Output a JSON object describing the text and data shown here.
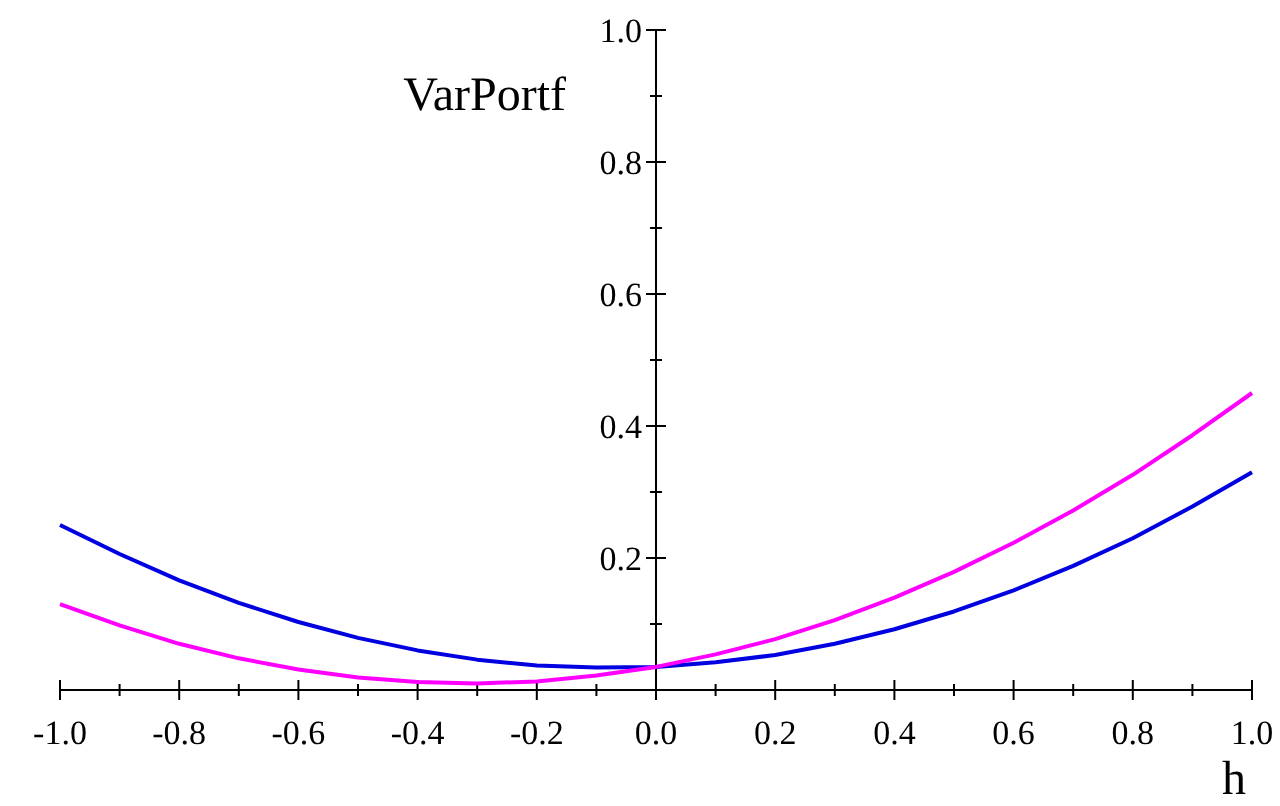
{
  "chart_data": {
    "type": "line",
    "xlabel": "h",
    "ylabel": "VarPortf",
    "xlim": [
      -1,
      1
    ],
    "ylim": [
      0,
      1
    ],
    "xticks": [
      {
        "value": -1,
        "label": "-1.0"
      },
      {
        "value": -0.9,
        "label": null
      },
      -0.8,
      {
        "value": -0.7,
        "label": null
      },
      -0.6,
      {
        "value": -0.5,
        "label": null
      },
      -0.4,
      {
        "value": -0.3,
        "label": null
      },
      -0.2,
      {
        "value": -0.1,
        "label": null
      },
      {
        "value": 0,
        "label": "0.0"
      },
      {
        "value": 0.1,
        "label": null
      },
      0.2,
      {
        "value": 0.3,
        "label": null
      },
      0.4,
      {
        "value": 0.5,
        "label": null
      },
      0.6,
      {
        "value": 0.7,
        "label": null
      },
      0.8,
      {
        "value": 0.9,
        "label": null
      },
      {
        "value": 1,
        "label": "1.0"
      }
    ],
    "yticks": [
      {
        "value": 0.1,
        "label": null
      },
      0.2,
      {
        "value": 0.3,
        "label": null
      },
      0.4,
      {
        "value": 0.5,
        "label": null
      },
      0.6,
      {
        "value": 0.7,
        "label": null
      },
      0.8,
      {
        "value": 0.9,
        "label": null
      },
      {
        "value": 1,
        "label": "1.0"
      }
    ],
    "x": [
      -1,
      -0.9,
      -0.8,
      -0.7,
      -0.6,
      -0.5,
      -0.4,
      -0.3,
      -0.2,
      -0.1,
      0,
      0.1,
      0.2,
      0.3,
      0.4,
      0.5,
      0.6,
      0.7,
      0.8,
      0.9,
      1
    ],
    "grid": false,
    "marker": "none",
    "line_style": "solid",
    "series": [
      {
        "color": "#0000e0",
        "values": [
          0.25,
          0.206,
          0.166,
          0.132,
          0.103,
          0.079,
          0.06,
          0.046,
          0.037,
          0.034,
          0.035,
          0.042,
          0.053,
          0.07,
          0.092,
          0.119,
          0.151,
          0.188,
          0.23,
          0.278,
          0.33
        ]
      },
      {
        "color": "#ff00ff",
        "values": [
          0.13,
          0.098,
          0.07,
          0.048,
          0.031,
          0.019,
          0.012,
          0.01,
          0.013,
          0.022,
          0.035,
          0.054,
          0.077,
          0.106,
          0.14,
          0.179,
          0.223,
          0.272,
          0.326,
          0.386,
          0.45
        ]
      }
    ]
  }
}
